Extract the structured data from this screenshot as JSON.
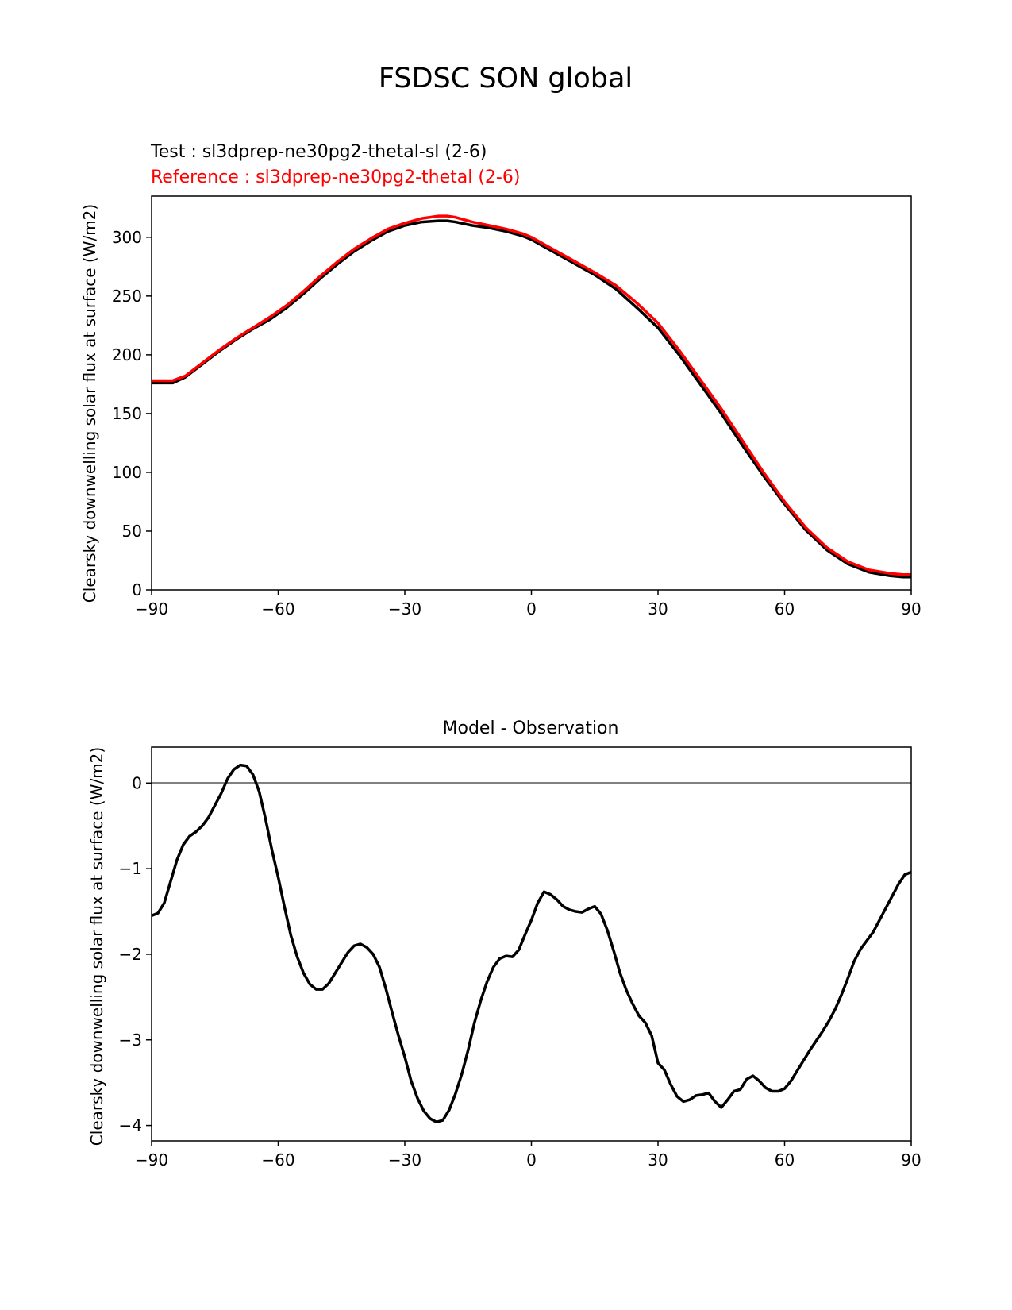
{
  "figure": {
    "suptitle": "FSDSC SON global"
  },
  "chart_data": [
    {
      "type": "line",
      "title": "",
      "test_label": "Test : sl3dprep-ne30pg2-thetal-sl (2-6)",
      "reference_label": "Reference : sl3dprep-ne30pg2-thetal (2-6)",
      "xlabel": "",
      "ylabel": "Clearsky downwelling solar flux at surface (W/m2)",
      "xlim": [
        -90,
        90
      ],
      "ylim": [
        0,
        335
      ],
      "xticks": [
        -90,
        -60,
        -30,
        0,
        30,
        60,
        90
      ],
      "xtick_labels": [
        "−90",
        "−60",
        "−30",
        "0",
        "30",
        "60",
        "90"
      ],
      "yticks": [
        0,
        50,
        100,
        150,
        200,
        250,
        300
      ],
      "yticks_labels": [
        "0",
        "50",
        "100",
        "150",
        "200",
        "250",
        "300"
      ],
      "grid": false,
      "series": [
        {
          "name": "Test",
          "color": "#000000",
          "x": [
            -90,
            -85,
            -82,
            -78,
            -74,
            -70,
            -66,
            -62,
            -58,
            -54,
            -50,
            -46,
            -42,
            -38,
            -34,
            -30,
            -26,
            -22,
            -20,
            -18,
            -14,
            -10,
            -6,
            -2,
            0,
            5,
            10,
            15,
            20,
            25,
            30,
            35,
            40,
            45,
            50,
            55,
            60,
            65,
            70,
            75,
            80,
            85,
            88,
            90
          ],
          "y": [
            176,
            176,
            181,
            192,
            203,
            213,
            222,
            230,
            240,
            252,
            265,
            277,
            288,
            297,
            305,
            310,
            313,
            314,
            314,
            313,
            310,
            308,
            305,
            301,
            298,
            288,
            278,
            268,
            256,
            240,
            223,
            200,
            175,
            150,
            123,
            97,
            73,
            51,
            34,
            22,
            15,
            12,
            11,
            11
          ]
        },
        {
          "name": "Reference",
          "color": "#ff0000",
          "x": [
            -90,
            -85,
            -82,
            -78,
            -74,
            -70,
            -66,
            -62,
            -58,
            -54,
            -50,
            -46,
            -42,
            -38,
            -34,
            -30,
            -26,
            -22,
            -20,
            -18,
            -14,
            -10,
            -6,
            -2,
            0,
            5,
            10,
            15,
            20,
            25,
            30,
            35,
            40,
            45,
            50,
            55,
            60,
            65,
            70,
            75,
            80,
            85,
            88,
            90
          ],
          "y": [
            178,
            178,
            182,
            193,
            204,
            214,
            223,
            232,
            242,
            254,
            267,
            279,
            290,
            299,
            307,
            312,
            316,
            318,
            318,
            317,
            313,
            310,
            307,
            303,
            300,
            290,
            280,
            270,
            259,
            244,
            227,
            204,
            179,
            154,
            127,
            100,
            75,
            53,
            36,
            24,
            17,
            14,
            13,
            13
          ]
        }
      ]
    },
    {
      "type": "line",
      "title": "Model - Observation",
      "xlabel": "",
      "ylabel": "Clearsky downwelling solar flux at surface (W/m2)",
      "xlim": [
        -90,
        90
      ],
      "ylim": [
        -4.18,
        0.42
      ],
      "xticks": [
        -90,
        -60,
        -30,
        0,
        30,
        60,
        90
      ],
      "xtick_labels": [
        "−90",
        "−60",
        "−30",
        "0",
        "30",
        "60",
        "90"
      ],
      "yticks": [
        -4,
        -3,
        -2,
        -1,
        0
      ],
      "ytick_labels": [
        "−4",
        "−3",
        "−2",
        "−1",
        "0"
      ],
      "zero_line": 0,
      "zero_line_color": "#808080",
      "grid": false,
      "series": [
        {
          "name": "",
          "color": "#000000",
          "x": [
            -90,
            -88.5,
            -87,
            -85.5,
            -84,
            -82.5,
            -81,
            -79.5,
            -78,
            -76.5,
            -75,
            -73.5,
            -72,
            -70.5,
            -69,
            -67.5,
            -66,
            -64.5,
            -63,
            -61.5,
            -60,
            -58.5,
            -57,
            -55.5,
            -54,
            -52.5,
            -51,
            -49.5,
            -48,
            -46.5,
            -45,
            -43.5,
            -42,
            -40.5,
            -39,
            -37.5,
            -36,
            -34.5,
            -33,
            -31.5,
            -30,
            -28.5,
            -27,
            -25.5,
            -24,
            -22.5,
            -21,
            -19.5,
            -18,
            -16.5,
            -15,
            -13.5,
            -12,
            -10.5,
            -9,
            -7.5,
            -6,
            -4.5,
            -3,
            -1.5,
            0,
            1.5,
            3,
            4.5,
            6,
            7.5,
            9,
            10.5,
            12,
            13.5,
            15,
            16.5,
            18,
            19.5,
            21,
            22.5,
            24,
            25.5,
            27,
            28.5,
            30,
            31.5,
            33,
            34.5,
            36,
            37.5,
            39,
            40.5,
            42,
            43.5,
            45,
            46.5,
            48,
            49.5,
            51,
            52.5,
            54,
            55.5,
            57,
            58.5,
            60,
            61.5,
            63,
            64.5,
            66,
            67.5,
            69,
            70.5,
            72,
            73.5,
            75,
            76.5,
            78,
            79.5,
            81,
            82.5,
            84,
            85.5,
            87,
            88.5,
            90
          ],
          "y": [
            -1.55,
            -1.52,
            -1.4,
            -1.15,
            -0.9,
            -0.72,
            -0.62,
            -0.57,
            -0.5,
            -0.4,
            -0.26,
            -0.12,
            0.05,
            0.16,
            0.21,
            0.2,
            0.1,
            -0.1,
            -0.42,
            -0.78,
            -1.1,
            -1.45,
            -1.78,
            -2.03,
            -2.22,
            -2.35,
            -2.41,
            -2.41,
            -2.34,
            -2.22,
            -2.1,
            -1.98,
            -1.9,
            -1.88,
            -1.92,
            -2.0,
            -2.15,
            -2.4,
            -2.68,
            -2.95,
            -3.2,
            -3.48,
            -3.68,
            -3.83,
            -3.92,
            -3.96,
            -3.94,
            -3.82,
            -3.63,
            -3.4,
            -3.12,
            -2.8,
            -2.54,
            -2.32,
            -2.15,
            -2.05,
            -2.02,
            -2.03,
            -1.95,
            -1.77,
            -1.6,
            -1.4,
            -1.27,
            -1.3,
            -1.36,
            -1.44,
            -1.48,
            -1.5,
            -1.51,
            -1.47,
            -1.44,
            -1.53,
            -1.72,
            -1.96,
            -2.22,
            -2.42,
            -2.58,
            -2.72,
            -2.8,
            -2.95,
            -3.27,
            -3.35,
            -3.52,
            -3.66,
            -3.72,
            -3.7,
            -3.65,
            -3.64,
            -3.62,
            -3.72,
            -3.79,
            -3.7,
            -3.6,
            -3.58,
            -3.46,
            -3.42,
            -3.48,
            -3.56,
            -3.6,
            -3.6,
            -3.57,
            -3.48,
            -3.36,
            -3.24,
            -3.12,
            -3.01,
            -2.9,
            -2.78,
            -2.64,
            -2.47,
            -2.28,
            -2.08,
            -1.94,
            -1.84,
            -1.74,
            -1.6,
            -1.46,
            -1.32,
            -1.18,
            -1.07,
            -1.04
          ]
        }
      ]
    }
  ]
}
